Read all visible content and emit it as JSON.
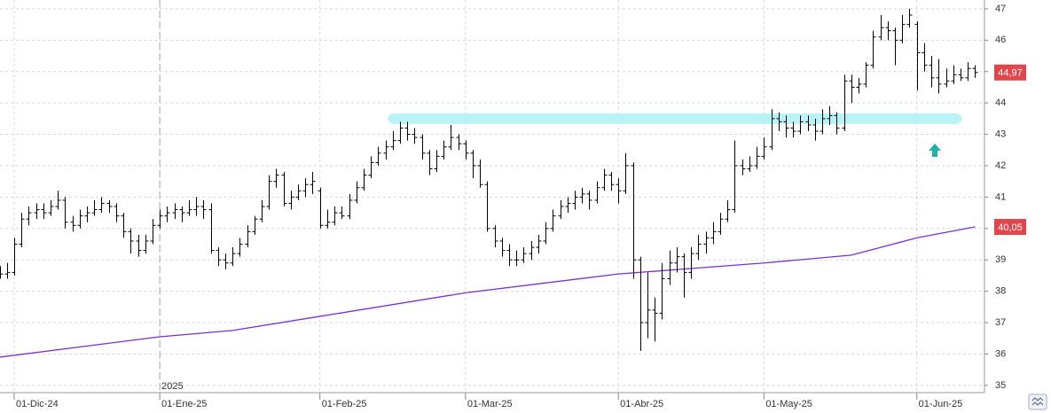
{
  "chart_data": {
    "type": "ohlc",
    "ohlc": [
      [
        38.5,
        38.8,
        38.4,
        38.55
      ],
      [
        38.55,
        38.9,
        38.4,
        38.6
      ],
      [
        38.6,
        39.7,
        38.5,
        39.5
      ],
      [
        39.5,
        40.5,
        39.4,
        40.3
      ],
      [
        40.3,
        40.7,
        40.1,
        40.5
      ],
      [
        40.5,
        40.8,
        40.3,
        40.6
      ],
      [
        40.6,
        40.8,
        40.3,
        40.5
      ],
      [
        40.5,
        40.9,
        40.4,
        40.7
      ],
      [
        40.7,
        41.2,
        40.6,
        40.9
      ],
      [
        40.9,
        41.0,
        40.0,
        40.2
      ],
      [
        40.2,
        40.4,
        39.9,
        40.1
      ],
      [
        40.1,
        40.6,
        40.0,
        40.4
      ],
      [
        40.4,
        40.7,
        40.2,
        40.5
      ],
      [
        40.5,
        40.9,
        40.4,
        40.6
      ],
      [
        40.6,
        41.0,
        40.5,
        40.8
      ],
      [
        40.8,
        40.9,
        40.5,
        40.7
      ],
      [
        40.7,
        40.8,
        40.2,
        40.4
      ],
      [
        40.4,
        40.5,
        39.7,
        39.9
      ],
      [
        39.9,
        40.0,
        39.2,
        39.6
      ],
      [
        39.6,
        39.8,
        39.1,
        39.3
      ],
      [
        39.3,
        39.8,
        39.2,
        39.6
      ],
      [
        39.6,
        40.3,
        39.5,
        40.1
      ],
      [
        40.1,
        40.6,
        40.0,
        40.4
      ],
      [
        40.4,
        40.7,
        40.2,
        40.5
      ],
      [
        40.5,
        40.8,
        40.3,
        40.6
      ],
      [
        40.6,
        40.7,
        40.2,
        40.5
      ],
      [
        40.5,
        40.9,
        40.4,
        40.6
      ],
      [
        40.6,
        41.0,
        40.4,
        40.7
      ],
      [
        40.7,
        40.9,
        40.3,
        40.6
      ],
      [
        40.6,
        40.8,
        39.2,
        39.3
      ],
      [
        39.3,
        39.4,
        38.8,
        39.0
      ],
      [
        39.0,
        39.2,
        38.7,
        38.9
      ],
      [
        38.9,
        39.4,
        38.8,
        39.2
      ],
      [
        39.2,
        39.7,
        39.1,
        39.5
      ],
      [
        39.5,
        40.1,
        39.4,
        39.9
      ],
      [
        39.9,
        40.4,
        39.8,
        40.3
      ],
      [
        40.3,
        40.9,
        40.2,
        40.7
      ],
      [
        40.7,
        41.7,
        40.6,
        41.5
      ],
      [
        41.5,
        41.9,
        41.3,
        41.7
      ],
      [
        41.7,
        41.8,
        40.7,
        40.8
      ],
      [
        40.8,
        41.2,
        40.6,
        41.0
      ],
      [
        41.0,
        41.4,
        40.9,
        41.2
      ],
      [
        41.2,
        41.6,
        41.0,
        41.4
      ],
      [
        41.4,
        41.8,
        41.1,
        41.5
      ],
      [
        41.2,
        41.3,
        40.0,
        40.1
      ],
      [
        40.1,
        40.6,
        40.0,
        40.2
      ],
      [
        40.2,
        40.7,
        40.1,
        40.5
      ],
      [
        40.5,
        40.7,
        40.3,
        40.4
      ],
      [
        40.4,
        41.1,
        40.3,
        40.9
      ],
      [
        40.9,
        41.5,
        40.8,
        41.3
      ],
      [
        41.3,
        41.9,
        41.2,
        41.7
      ],
      [
        41.7,
        42.3,
        41.6,
        42.1
      ],
      [
        42.1,
        42.6,
        42.0,
        42.4
      ],
      [
        42.4,
        42.8,
        42.2,
        42.6
      ],
      [
        42.6,
        43.1,
        42.5,
        42.8
      ],
      [
        42.8,
        43.4,
        42.7,
        43.2
      ],
      [
        43.2,
        43.4,
        42.8,
        43.0
      ],
      [
        43.0,
        43.2,
        42.7,
        42.9
      ],
      [
        42.9,
        43.0,
        42.2,
        42.4
      ],
      [
        42.4,
        42.5,
        41.7,
        41.9
      ],
      [
        41.9,
        42.5,
        41.8,
        42.3
      ],
      [
        42.3,
        42.8,
        42.2,
        42.6
      ],
      [
        42.6,
        43.3,
        42.5,
        42.9
      ],
      [
        42.9,
        43.0,
        42.5,
        42.7
      ],
      [
        42.7,
        42.8,
        42.2,
        42.4
      ],
      [
        42.4,
        42.5,
        41.6,
        42.0
      ],
      [
        42.0,
        42.2,
        41.3,
        41.4
      ],
      [
        41.4,
        41.5,
        39.9,
        40.0
      ],
      [
        40.0,
        40.1,
        39.4,
        39.6
      ],
      [
        39.6,
        39.7,
        39.1,
        39.3
      ],
      [
        39.3,
        39.5,
        38.8,
        39.0
      ],
      [
        39.0,
        39.3,
        38.8,
        39.0
      ],
      [
        39.0,
        39.4,
        38.9,
        39.2
      ],
      [
        39.2,
        39.6,
        39.0,
        39.4
      ],
      [
        39.4,
        39.8,
        39.2,
        39.6
      ],
      [
        39.6,
        40.2,
        39.5,
        40.0
      ],
      [
        40.0,
        40.6,
        39.9,
        40.4
      ],
      [
        40.4,
        40.9,
        40.3,
        40.7
      ],
      [
        40.7,
        41.0,
        40.5,
        40.8
      ],
      [
        40.8,
        41.2,
        40.6,
        41.0
      ],
      [
        41.0,
        41.3,
        40.8,
        41.1
      ],
      [
        41.1,
        41.2,
        40.6,
        40.9
      ],
      [
        40.9,
        41.5,
        40.8,
        41.3
      ],
      [
        41.3,
        41.9,
        41.2,
        41.7
      ],
      [
        41.7,
        41.8,
        41.2,
        41.4
      ],
      [
        41.4,
        41.6,
        40.8,
        41.2
      ],
      [
        41.2,
        42.4,
        41.1,
        42.0
      ],
      [
        42.0,
        42.1,
        38.4,
        39.0
      ],
      [
        39.0,
        39.1,
        36.1,
        37.0
      ],
      [
        37.0,
        38.6,
        36.5,
        37.4
      ],
      [
        37.4,
        37.8,
        36.4,
        37.3
      ],
      [
        37.3,
        38.9,
        37.1,
        38.4
      ],
      [
        38.4,
        39.3,
        38.2,
        38.9
      ],
      [
        38.9,
        39.4,
        38.6,
        39.1
      ],
      [
        39.1,
        39.2,
        37.8,
        38.6
      ],
      [
        38.6,
        39.4,
        38.4,
        39.2
      ],
      [
        39.2,
        39.8,
        39.0,
        39.5
      ],
      [
        39.5,
        39.9,
        39.2,
        39.7
      ],
      [
        39.7,
        40.2,
        39.5,
        39.9
      ],
      [
        39.9,
        40.5,
        39.8,
        40.3
      ],
      [
        40.3,
        40.9,
        40.2,
        40.6
      ],
      [
        40.6,
        42.8,
        40.5,
        42.0
      ],
      [
        42.0,
        42.2,
        41.7,
        41.9
      ],
      [
        41.9,
        42.3,
        41.8,
        42.0
      ],
      [
        42.0,
        42.6,
        41.9,
        42.3
      ],
      [
        42.3,
        42.9,
        42.2,
        42.6
      ],
      [
        42.6,
        43.8,
        42.5,
        43.5
      ],
      [
        43.5,
        43.7,
        43.1,
        43.4
      ],
      [
        43.4,
        43.6,
        42.9,
        43.2
      ],
      [
        43.2,
        43.4,
        42.9,
        43.1
      ],
      [
        43.1,
        43.6,
        43.0,
        43.4
      ],
      [
        43.4,
        43.6,
        43.1,
        43.3
      ],
      [
        43.3,
        43.5,
        42.8,
        43.1
      ],
      [
        43.1,
        43.8,
        43.0,
        43.5
      ],
      [
        43.5,
        43.9,
        43.3,
        43.6
      ],
      [
        43.6,
        43.7,
        43.0,
        43.2
      ],
      [
        43.2,
        44.9,
        43.1,
        44.7
      ],
      [
        44.7,
        44.9,
        44.0,
        44.5
      ],
      [
        44.5,
        44.8,
        44.3,
        44.6
      ],
      [
        44.6,
        45.3,
        44.5,
        45.2
      ],
      [
        45.2,
        46.3,
        45.1,
        46.1
      ],
      [
        46.1,
        46.8,
        46.0,
        46.4
      ],
      [
        46.4,
        46.6,
        46.0,
        46.3
      ],
      [
        46.3,
        46.4,
        45.2,
        46.0
      ],
      [
        46.0,
        46.8,
        45.9,
        46.5
      ],
      [
        46.5,
        47.0,
        46.4,
        46.8
      ],
      [
        46.5,
        46.6,
        44.4,
        45.6
      ],
      [
        45.6,
        45.9,
        45.0,
        45.2
      ],
      [
        45.2,
        45.5,
        44.5,
        44.8
      ],
      [
        44.8,
        45.4,
        44.3,
        44.6
      ],
      [
        44.6,
        45.1,
        44.5,
        44.7
      ],
      [
        44.7,
        45.2,
        44.6,
        44.9
      ],
      [
        44.9,
        45.1,
        44.7,
        44.8
      ],
      [
        44.8,
        45.3,
        44.7,
        45.1
      ],
      [
        45.1,
        45.2,
        44.8,
        44.97
      ]
    ],
    "bar_color": "#000000",
    "moving_average": {
      "color": "#7b2fd0",
      "x": [
        0,
        22,
        32,
        44,
        64,
        85,
        105,
        117,
        126,
        134
      ],
      "values": [
        35.9,
        36.55,
        36.75,
        37.2,
        37.95,
        38.55,
        38.9,
        39.15,
        39.7,
        40.05
      ]
    },
    "support_band": {
      "value": 43.5,
      "x": [
        53.3,
        132.2
      ],
      "color": "#b9f3f6"
    },
    "price_labels": [
      {
        "value": 44.97,
        "label": "44,97"
      },
      {
        "value": 40.05,
        "label": "40,05"
      }
    ],
    "price_label_color": "#e0474c",
    "xlim": [
      0.05,
      135.3
    ],
    "xticks": [
      {
        "value": 2,
        "label": "01-Dic-24"
      },
      {
        "value": 22,
        "label": "01-Ene-25"
      },
      {
        "value": 44,
        "label": "01-Feb-25"
      },
      {
        "value": 64,
        "label": "01-Mar-25"
      },
      {
        "value": 85,
        "label": "01-Abr-25"
      },
      {
        "value": 105,
        "label": "01-May-25"
      },
      {
        "value": 126,
        "label": "01-Jun-25"
      }
    ],
    "year_marker": {
      "value": 22,
      "label": "2025"
    },
    "ylim": [
      34.77,
      47.28
    ],
    "yticks": [
      35,
      36,
      37,
      38,
      39,
      40,
      41,
      42,
      43,
      44,
      45,
      46,
      47
    ],
    "grid": true
  }
}
